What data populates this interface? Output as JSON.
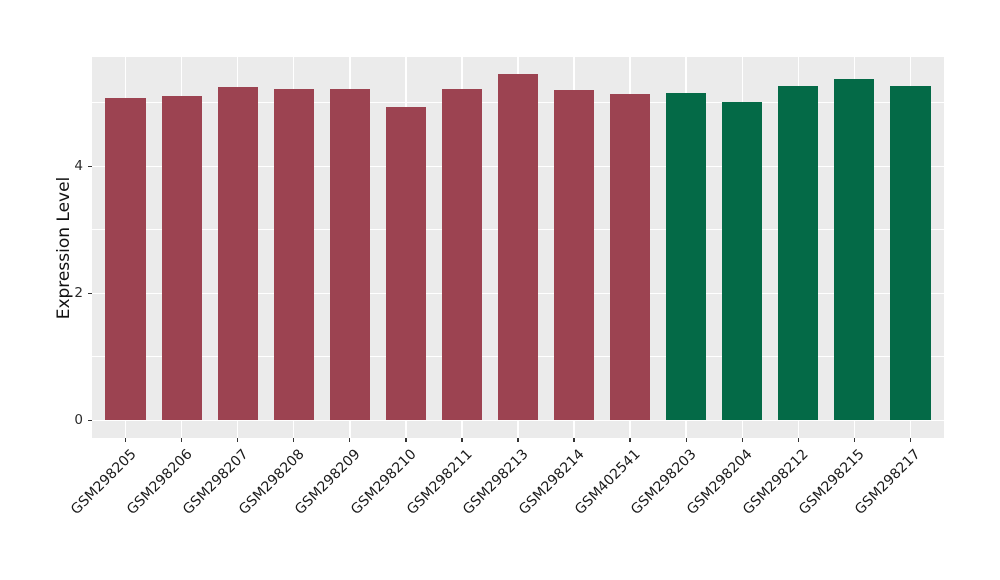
{
  "chart_data": {
    "type": "bar",
    "title": "",
    "xlabel": "",
    "ylabel": "Expression Level",
    "categories": [
      "GSM298205",
      "GSM298206",
      "GSM298207",
      "GSM298208",
      "GSM298209",
      "GSM298210",
      "GSM298211",
      "GSM298213",
      "GSM298214",
      "GSM402541",
      "GSM298203",
      "GSM298204",
      "GSM298212",
      "GSM298215",
      "GSM298217"
    ],
    "values": [
      5.08,
      5.1,
      5.24,
      5.22,
      5.22,
      4.93,
      5.21,
      5.45,
      5.2,
      5.13,
      5.15,
      5.01,
      5.26,
      5.37,
      5.26
    ],
    "groups": [
      0,
      0,
      0,
      0,
      0,
      0,
      0,
      0,
      0,
      0,
      1,
      1,
      1,
      1,
      1
    ],
    "group_colors": [
      "#9c4351",
      "#046a47"
    ],
    "ylim": [
      -0.28,
      5.72
    ],
    "yticks_major": [
      0,
      2,
      4
    ],
    "yticks_minor": [
      1,
      3,
      5
    ],
    "xlim": [
      0.4,
      15.6
    ],
    "bar_width_units": 0.72,
    "x_tick_rotation_deg": -45,
    "legend_position": "none",
    "panel_bg": "#ebebeb",
    "grid_color": "#ffffff",
    "tick_mark_color": "#333333",
    "axis_text_color": "#1a1a1a"
  }
}
